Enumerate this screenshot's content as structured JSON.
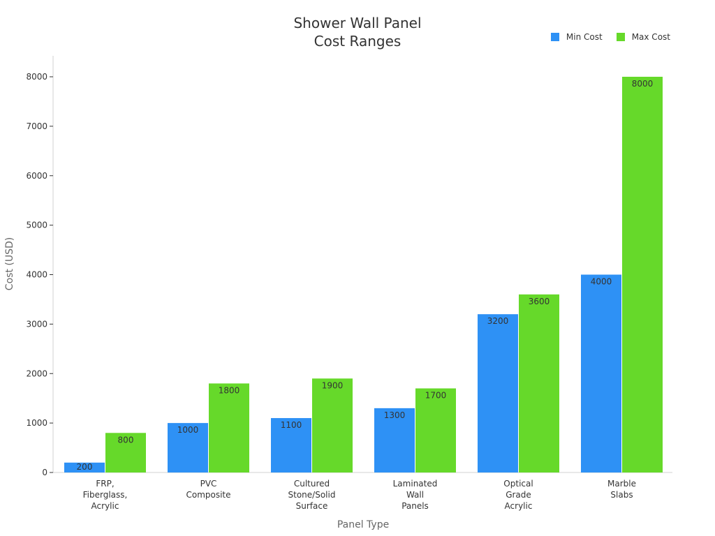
{
  "chart_data": {
    "type": "bar",
    "title_lines": [
      "Shower Wall Panel",
      "Cost Ranges"
    ],
    "xlabel": "Panel Type",
    "ylabel": "Cost (USD)",
    "ylim": [
      0,
      8400
    ],
    "yticks": [
      0,
      1000,
      2000,
      3000,
      4000,
      5000,
      6000,
      7000,
      8000
    ],
    "grid": false,
    "legend_position": "top-right",
    "categories": [
      [
        "FRP,",
        "Fiberglass,",
        "Acrylic"
      ],
      [
        "PVC",
        "Composite"
      ],
      [
        "Cultured",
        "Stone/Solid",
        "Surface"
      ],
      [
        "Laminated",
        "Wall",
        "Panels"
      ],
      [
        "Optical",
        "Grade",
        "Acrylic"
      ],
      [
        "Marble",
        "Slabs"
      ]
    ],
    "series": [
      {
        "name": "Min Cost",
        "color": "#2e91f5",
        "values": [
          200,
          1000,
          1100,
          1300,
          3200,
          4000
        ]
      },
      {
        "name": "Max Cost",
        "color": "#66d92a",
        "values": [
          800,
          1800,
          1900,
          1700,
          3600,
          8000
        ]
      }
    ]
  }
}
